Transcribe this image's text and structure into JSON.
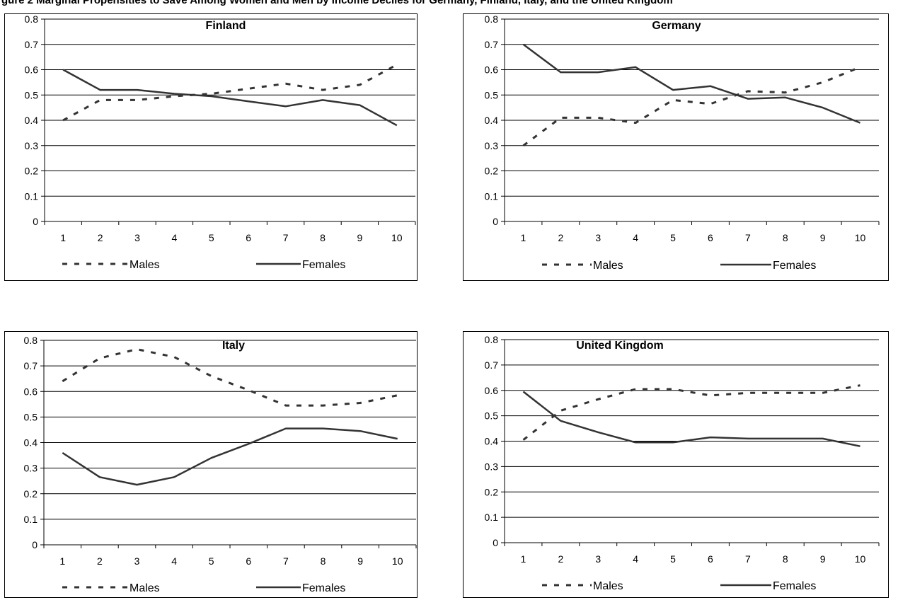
{
  "figure": {
    "caption_fragment": "gure 2 Marginal Propensities to Save Among Women and Men by Income Deciles for Germany, Finland, Italy, and the United Kingdom"
  },
  "chart_data": [
    {
      "type": "line",
      "title": "Finland",
      "categories": [
        "1",
        "2",
        "3",
        "4",
        "5",
        "6",
        "7",
        "8",
        "9",
        "10"
      ],
      "ylim": [
        0,
        0.8
      ],
      "yticks": [
        "0",
        "0.1",
        "0.2",
        "0.3",
        "0.4",
        "0.5",
        "0.6",
        "0.7",
        "0.8"
      ],
      "grid": true,
      "legend": "bottom",
      "series": [
        {
          "name": "Males",
          "style": "dashed",
          "values": [
            0.4,
            0.48,
            0.48,
            0.495,
            0.505,
            0.525,
            0.545,
            0.52,
            0.54,
            0.62
          ]
        },
        {
          "name": "Females",
          "style": "solid",
          "values": [
            0.6,
            0.52,
            0.52,
            0.505,
            0.495,
            0.475,
            0.455,
            0.48,
            0.46,
            0.38
          ]
        }
      ]
    },
    {
      "type": "line",
      "title": "Germany",
      "categories": [
        "1",
        "2",
        "3",
        "4",
        "5",
        "6",
        "7",
        "8",
        "9",
        "10"
      ],
      "ylim": [
        0,
        0.8
      ],
      "yticks": [
        "0",
        "0.1",
        "0.2",
        "0.3",
        "0.4",
        "0.5",
        "0.6",
        "0.7",
        "0.8"
      ],
      "grid": true,
      "legend": "bottom",
      "series": [
        {
          "name": "Males",
          "style": "dashed",
          "values": [
            0.3,
            0.41,
            0.41,
            0.39,
            0.48,
            0.465,
            0.515,
            0.51,
            0.55,
            0.61
          ]
        },
        {
          "name": "Females",
          "style": "solid",
          "values": [
            0.7,
            0.59,
            0.59,
            0.61,
            0.52,
            0.535,
            0.485,
            0.49,
            0.45,
            0.39
          ]
        }
      ]
    },
    {
      "type": "line",
      "title": "Italy",
      "categories": [
        "1",
        "2",
        "3",
        "4",
        "5",
        "6",
        "7",
        "8",
        "9",
        "10"
      ],
      "ylim": [
        0,
        0.8
      ],
      "yticks": [
        "0",
        "0.1",
        "0.2",
        "0.3",
        "0.4",
        "0.5",
        "0.6",
        "0.7",
        "0.8"
      ],
      "grid": true,
      "legend": "bottom",
      "series": [
        {
          "name": "Males",
          "style": "dashed",
          "values": [
            0.64,
            0.73,
            0.765,
            0.735,
            0.66,
            0.605,
            0.545,
            0.545,
            0.555,
            0.585
          ]
        },
        {
          "name": "Females",
          "style": "solid",
          "values": [
            0.36,
            0.265,
            0.235,
            0.265,
            0.34,
            0.395,
            0.455,
            0.455,
            0.445,
            0.415
          ]
        }
      ]
    },
    {
      "type": "line",
      "title": "United Kingdom",
      "categories": [
        "1",
        "2",
        "3",
        "4",
        "5",
        "6",
        "7",
        "8",
        "9",
        "10"
      ],
      "ylim": [
        0,
        0.8
      ],
      "yticks": [
        "0",
        "0.1",
        "0.2",
        "0.3",
        "0.4",
        "0.5",
        "0.6",
        "0.7",
        "0.8"
      ],
      "grid": true,
      "legend": "bottom",
      "series": [
        {
          "name": "Males",
          "style": "dashed",
          "values": [
            0.405,
            0.52,
            0.565,
            0.605,
            0.605,
            0.58,
            0.59,
            0.59,
            0.59,
            0.62
          ]
        },
        {
          "name": "Females",
          "style": "solid",
          "values": [
            0.595,
            0.48,
            0.435,
            0.395,
            0.395,
            0.415,
            0.41,
            0.41,
            0.41,
            0.38
          ]
        }
      ]
    }
  ]
}
